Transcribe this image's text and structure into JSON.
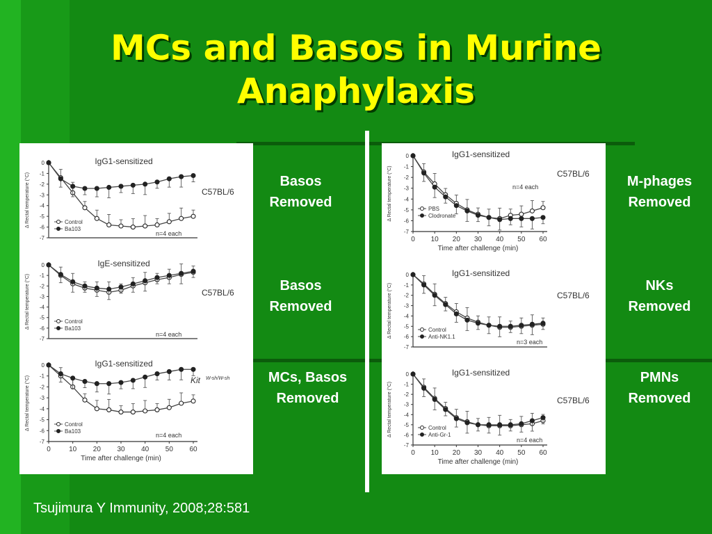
{
  "slide": {
    "title_line1": "MCs and Basos in Murine",
    "title_line2": "Anaphylaxis",
    "citation": "Tsujimura Y Immunity, 2008;28:581",
    "colors": {
      "background": "#138a13",
      "title": "#ffff00",
      "text": "#ffffff"
    }
  },
  "labels": {
    "left": [
      "Basos\nRemoved",
      "Basos\nRemoved",
      "MCs, Basos\nRemoved"
    ],
    "right": [
      "M-phages\nRemoved",
      "NKs\nRemoved",
      "PMNs\nRemoved"
    ]
  },
  "chart_data": [
    {
      "type": "line",
      "title": "IgG1-sensitized",
      "strain": "C57BL/6",
      "n_label": "n=4 each",
      "ylabel": "Δ Rectal temperature (°C)",
      "xlabel": "",
      "ylim": [
        -7,
        0
      ],
      "xlim": [
        0,
        60
      ],
      "x_ticks": [],
      "x": [
        0,
        5,
        10,
        15,
        20,
        25,
        30,
        35,
        40,
        45,
        50,
        55,
        60
      ],
      "series": [
        {
          "name": "Control",
          "marker": "open",
          "values": [
            0,
            -1.4,
            -2.8,
            -4.2,
            -5.2,
            -5.8,
            -5.9,
            -6.0,
            -5.9,
            -5.8,
            -5.5,
            -5.2,
            -5.0
          ]
        },
        {
          "name": "Ba103",
          "marker": "filled",
          "values": [
            0,
            -1.5,
            -2.2,
            -2.4,
            -2.4,
            -2.3,
            -2.2,
            -2.1,
            -2.0,
            -1.8,
            -1.5,
            -1.3,
            -1.2
          ]
        }
      ]
    },
    {
      "type": "line",
      "title": "IgE-sensitized",
      "strain": "C57BL/6",
      "n_label": "n=4 each",
      "ylabel": "Δ Rectal temperature (°C)",
      "xlabel": "",
      "ylim": [
        -7,
        0
      ],
      "xlim": [
        0,
        60
      ],
      "x_ticks": [],
      "x": [
        0,
        5,
        10,
        15,
        20,
        25,
        30,
        35,
        40,
        45,
        50,
        55,
        60
      ],
      "series": [
        {
          "name": "Control",
          "marker": "open",
          "values": [
            0,
            -1.0,
            -1.8,
            -2.2,
            -2.4,
            -2.6,
            -2.4,
            -2.0,
            -1.7,
            -1.4,
            -1.2,
            -0.9,
            -0.7
          ]
        },
        {
          "name": "Ba103",
          "marker": "filled",
          "values": [
            0,
            -0.9,
            -1.6,
            -2.0,
            -2.2,
            -2.3,
            -2.1,
            -1.8,
            -1.5,
            -1.2,
            -1.0,
            -0.8,
            -0.6
          ]
        }
      ]
    },
    {
      "type": "line",
      "title": "IgG1-sensitized",
      "strain": "Kit",
      "strain_sup": "W-sh/W-sh",
      "strain_italic": true,
      "n_label": "n=4 each",
      "ylabel": "Δ Rectal temperature (°C)",
      "xlabel": "Time after challenge (min)",
      "ylim": [
        -7,
        0
      ],
      "xlim": [
        0,
        60
      ],
      "x_ticks": [
        0,
        10,
        20,
        30,
        40,
        50,
        60
      ],
      "x": [
        0,
        5,
        10,
        15,
        20,
        25,
        30,
        35,
        40,
        45,
        50,
        55,
        60
      ],
      "series": [
        {
          "name": "Control",
          "marker": "open",
          "values": [
            0,
            -1.0,
            -2.0,
            -3.2,
            -4.0,
            -4.1,
            -4.3,
            -4.3,
            -4.2,
            -4.1,
            -3.9,
            -3.5,
            -3.3
          ]
        },
        {
          "name": "Ba103",
          "marker": "filled",
          "values": [
            0,
            -0.8,
            -1.2,
            -1.5,
            -1.7,
            -1.7,
            -1.6,
            -1.4,
            -1.1,
            -0.8,
            -0.6,
            -0.4,
            -0.4
          ]
        }
      ]
    },
    {
      "type": "line",
      "title": "IgG1-sensitized",
      "strain": "C57BL/6",
      "n_label": "n=4 each",
      "n_pos": "upper",
      "ylabel": "Δ Rectal temperature (°C)",
      "xlabel": "Time after challenge (min)",
      "ylim": [
        -7,
        0
      ],
      "xlim": [
        0,
        60
      ],
      "x_ticks": [
        0,
        10,
        20,
        30,
        40,
        50,
        60
      ],
      "x": [
        0,
        5,
        10,
        15,
        20,
        25,
        30,
        35,
        40,
        45,
        50,
        55,
        60
      ],
      "series": [
        {
          "name": "PBS",
          "marker": "open",
          "values": [
            0,
            -1.5,
            -2.6,
            -3.6,
            -4.4,
            -5.0,
            -5.4,
            -5.7,
            -5.8,
            -5.5,
            -5.4,
            -5.1,
            -4.8
          ]
        },
        {
          "name": "Clodronate",
          "marker": "filled",
          "values": [
            0,
            -1.6,
            -2.9,
            -3.8,
            -4.6,
            -5.1,
            -5.5,
            -5.7,
            -5.9,
            -5.8,
            -5.8,
            -5.8,
            -5.7
          ]
        }
      ]
    },
    {
      "type": "line",
      "title": "IgG1-sensitized",
      "strain": "C57BL/6",
      "n_label": "n=3 each",
      "ylabel": "Δ Rectal temperature (°C)",
      "xlabel": "",
      "ylim": [
        -7,
        0
      ],
      "xlim": [
        0,
        60
      ],
      "x_ticks": [],
      "x": [
        0,
        5,
        10,
        15,
        20,
        25,
        30,
        35,
        40,
        45,
        50,
        55,
        60
      ],
      "series": [
        {
          "name": "Control",
          "marker": "open",
          "values": [
            0,
            -0.9,
            -1.9,
            -2.8,
            -3.6,
            -4.2,
            -4.6,
            -4.9,
            -5.1,
            -5.1,
            -5.0,
            -4.9,
            -4.8
          ]
        },
        {
          "name": "Anti-NK1.1",
          "marker": "filled",
          "values": [
            0,
            -1.0,
            -2.0,
            -2.9,
            -3.8,
            -4.4,
            -4.7,
            -4.9,
            -5.0,
            -5.0,
            -4.9,
            -4.8,
            -4.7
          ]
        }
      ]
    },
    {
      "type": "line",
      "title": "IgG1-sensitized",
      "strain": "C57BL/6",
      "n_label": "n=4 each",
      "ylabel": "Δ Rectal temperature (°C)",
      "xlabel": "Time after challenge (min)",
      "ylim": [
        -7,
        0
      ],
      "xlim": [
        0,
        60
      ],
      "x_ticks": [
        0,
        10,
        20,
        30,
        40,
        50,
        60
      ],
      "x": [
        0,
        5,
        10,
        15,
        20,
        25,
        30,
        35,
        40,
        45,
        50,
        55,
        60
      ],
      "series": [
        {
          "name": "Control",
          "marker": "open",
          "values": [
            0,
            -1.3,
            -2.4,
            -3.4,
            -4.3,
            -4.7,
            -5.0,
            -5.1,
            -5.1,
            -5.1,
            -5.0,
            -4.9,
            -4.6
          ]
        },
        {
          "name": "Anti-Gr-1",
          "marker": "filled",
          "values": [
            0,
            -1.4,
            -2.5,
            -3.5,
            -4.4,
            -4.8,
            -5.0,
            -5.0,
            -5.0,
            -5.0,
            -4.9,
            -4.6,
            -4.3
          ]
        }
      ]
    }
  ]
}
